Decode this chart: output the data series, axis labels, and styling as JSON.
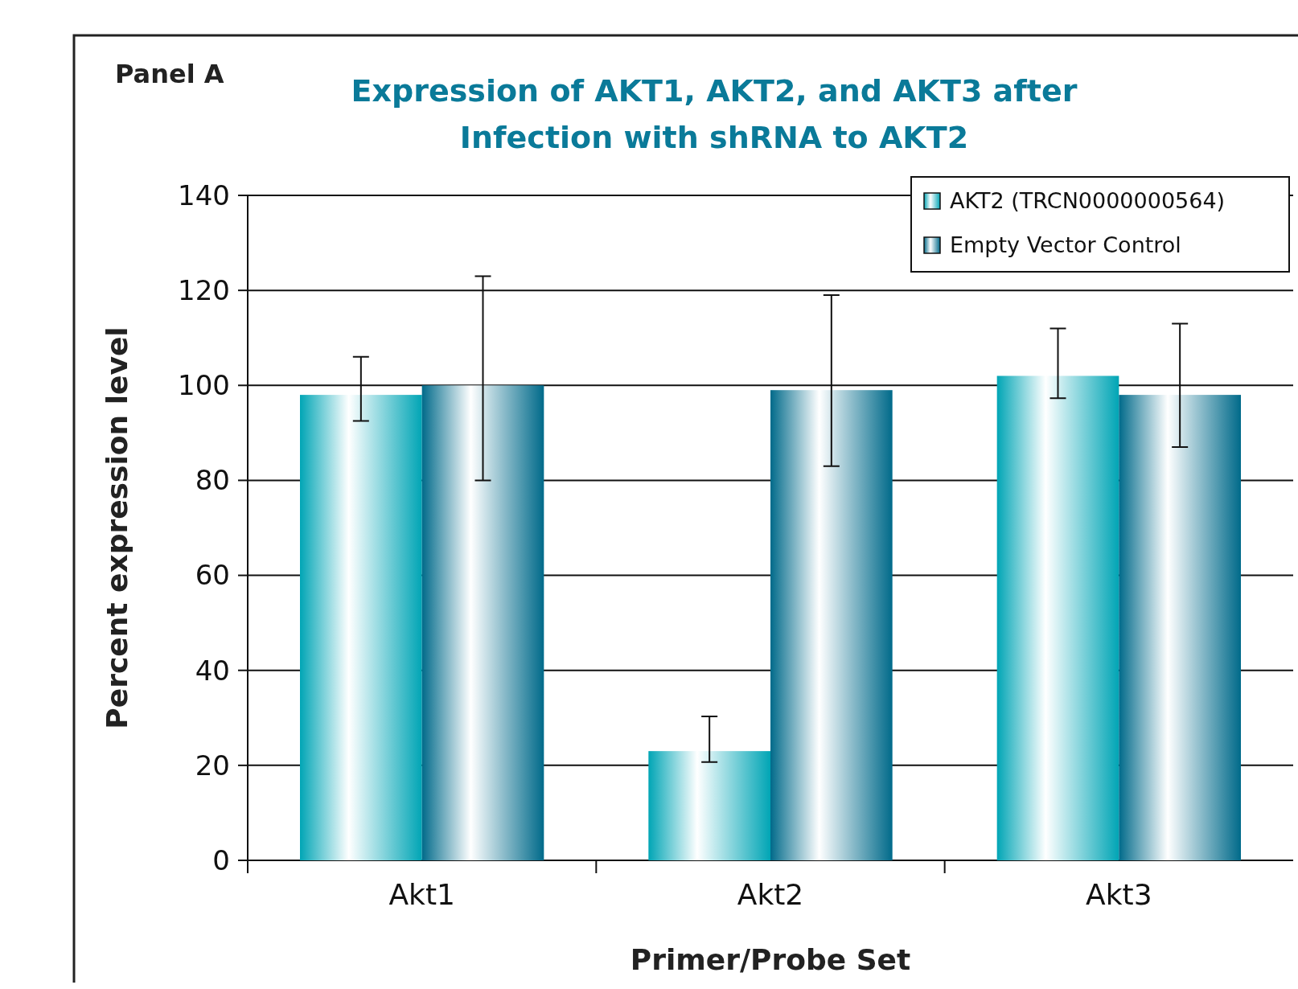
{
  "chart_data": {
    "type": "bar",
    "title": "Expression of AKT1, AKT2, and AKT3 after Infection with shRNA to AKT2",
    "xlabel": "Primer/Probe Set",
    "ylabel": "Percent expression level",
    "annotations": [
      "Panel A"
    ],
    "categories": [
      "Akt1",
      "Akt2",
      "Akt3"
    ],
    "series": [
      {
        "name": "AKT2 (TRCN0000000564)",
        "color": "#00a5b5",
        "values": [
          98,
          23,
          102
        ],
        "errors": [
          [
            92.5,
            106
          ],
          [
            20.7,
            30.3
          ],
          [
            97.3,
            112
          ]
        ]
      },
      {
        "name": "Empty Vector Control",
        "color": "#006a8a",
        "values": [
          100,
          99,
          98
        ],
        "errors": [
          [
            80,
            123
          ],
          [
            83,
            119
          ],
          [
            87,
            113
          ]
        ]
      }
    ],
    "ylim": [
      0,
      140
    ],
    "yticks": [
      0,
      20,
      40,
      60,
      80,
      100,
      120,
      140
    ],
    "grid": "y",
    "legend": "top right"
  }
}
